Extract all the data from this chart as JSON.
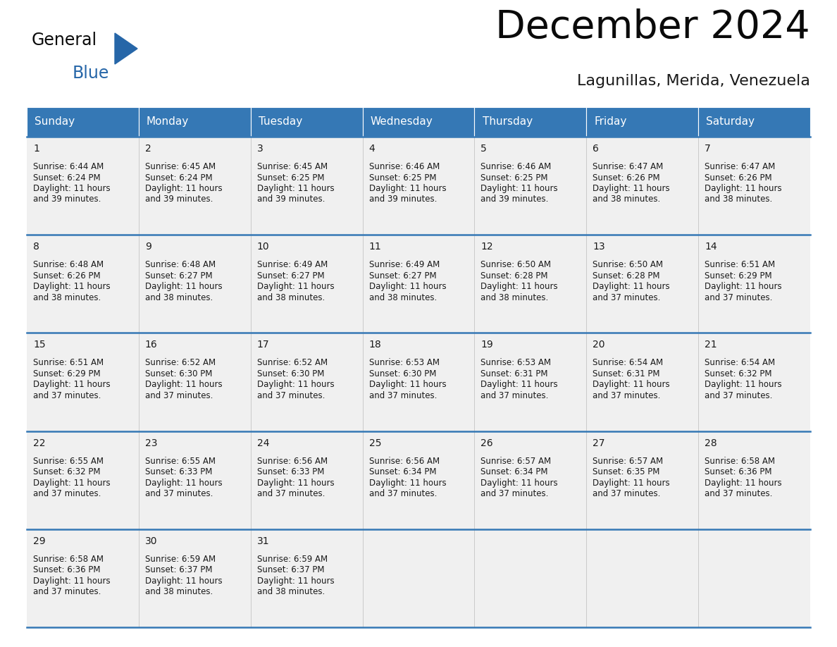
{
  "title": "December 2024",
  "subtitle": "Lagunillas, Merida, Venezuela",
  "header_color": "#3578b5",
  "header_text_color": "#ffffff",
  "cell_bg": "#f0f0f0",
  "days_of_week": [
    "Sunday",
    "Monday",
    "Tuesday",
    "Wednesday",
    "Thursday",
    "Friday",
    "Saturday"
  ],
  "weeks": [
    [
      {
        "day": 1,
        "sunrise": "6:44 AM",
        "sunset": "6:24 PM",
        "daylight_hours": 11,
        "daylight_mins": 39
      },
      {
        "day": 2,
        "sunrise": "6:45 AM",
        "sunset": "6:24 PM",
        "daylight_hours": 11,
        "daylight_mins": 39
      },
      {
        "day": 3,
        "sunrise": "6:45 AM",
        "sunset": "6:25 PM",
        "daylight_hours": 11,
        "daylight_mins": 39
      },
      {
        "day": 4,
        "sunrise": "6:46 AM",
        "sunset": "6:25 PM",
        "daylight_hours": 11,
        "daylight_mins": 39
      },
      {
        "day": 5,
        "sunrise": "6:46 AM",
        "sunset": "6:25 PM",
        "daylight_hours": 11,
        "daylight_mins": 39
      },
      {
        "day": 6,
        "sunrise": "6:47 AM",
        "sunset": "6:26 PM",
        "daylight_hours": 11,
        "daylight_mins": 38
      },
      {
        "day": 7,
        "sunrise": "6:47 AM",
        "sunset": "6:26 PM",
        "daylight_hours": 11,
        "daylight_mins": 38
      }
    ],
    [
      {
        "day": 8,
        "sunrise": "6:48 AM",
        "sunset": "6:26 PM",
        "daylight_hours": 11,
        "daylight_mins": 38
      },
      {
        "day": 9,
        "sunrise": "6:48 AM",
        "sunset": "6:27 PM",
        "daylight_hours": 11,
        "daylight_mins": 38
      },
      {
        "day": 10,
        "sunrise": "6:49 AM",
        "sunset": "6:27 PM",
        "daylight_hours": 11,
        "daylight_mins": 38
      },
      {
        "day": 11,
        "sunrise": "6:49 AM",
        "sunset": "6:27 PM",
        "daylight_hours": 11,
        "daylight_mins": 38
      },
      {
        "day": 12,
        "sunrise": "6:50 AM",
        "sunset": "6:28 PM",
        "daylight_hours": 11,
        "daylight_mins": 38
      },
      {
        "day": 13,
        "sunrise": "6:50 AM",
        "sunset": "6:28 PM",
        "daylight_hours": 11,
        "daylight_mins": 37
      },
      {
        "day": 14,
        "sunrise": "6:51 AM",
        "sunset": "6:29 PM",
        "daylight_hours": 11,
        "daylight_mins": 37
      }
    ],
    [
      {
        "day": 15,
        "sunrise": "6:51 AM",
        "sunset": "6:29 PM",
        "daylight_hours": 11,
        "daylight_mins": 37
      },
      {
        "day": 16,
        "sunrise": "6:52 AM",
        "sunset": "6:30 PM",
        "daylight_hours": 11,
        "daylight_mins": 37
      },
      {
        "day": 17,
        "sunrise": "6:52 AM",
        "sunset": "6:30 PM",
        "daylight_hours": 11,
        "daylight_mins": 37
      },
      {
        "day": 18,
        "sunrise": "6:53 AM",
        "sunset": "6:30 PM",
        "daylight_hours": 11,
        "daylight_mins": 37
      },
      {
        "day": 19,
        "sunrise": "6:53 AM",
        "sunset": "6:31 PM",
        "daylight_hours": 11,
        "daylight_mins": 37
      },
      {
        "day": 20,
        "sunrise": "6:54 AM",
        "sunset": "6:31 PM",
        "daylight_hours": 11,
        "daylight_mins": 37
      },
      {
        "day": 21,
        "sunrise": "6:54 AM",
        "sunset": "6:32 PM",
        "daylight_hours": 11,
        "daylight_mins": 37
      }
    ],
    [
      {
        "day": 22,
        "sunrise": "6:55 AM",
        "sunset": "6:32 PM",
        "daylight_hours": 11,
        "daylight_mins": 37
      },
      {
        "day": 23,
        "sunrise": "6:55 AM",
        "sunset": "6:33 PM",
        "daylight_hours": 11,
        "daylight_mins": 37
      },
      {
        "day": 24,
        "sunrise": "6:56 AM",
        "sunset": "6:33 PM",
        "daylight_hours": 11,
        "daylight_mins": 37
      },
      {
        "day": 25,
        "sunrise": "6:56 AM",
        "sunset": "6:34 PM",
        "daylight_hours": 11,
        "daylight_mins": 37
      },
      {
        "day": 26,
        "sunrise": "6:57 AM",
        "sunset": "6:34 PM",
        "daylight_hours": 11,
        "daylight_mins": 37
      },
      {
        "day": 27,
        "sunrise": "6:57 AM",
        "sunset": "6:35 PM",
        "daylight_hours": 11,
        "daylight_mins": 37
      },
      {
        "day": 28,
        "sunrise": "6:58 AM",
        "sunset": "6:36 PM",
        "daylight_hours": 11,
        "daylight_mins": 37
      }
    ],
    [
      {
        "day": 29,
        "sunrise": "6:58 AM",
        "sunset": "6:36 PM",
        "daylight_hours": 11,
        "daylight_mins": 37
      },
      {
        "day": 30,
        "sunrise": "6:59 AM",
        "sunset": "6:37 PM",
        "daylight_hours": 11,
        "daylight_mins": 38
      },
      {
        "day": 31,
        "sunrise": "6:59 AM",
        "sunset": "6:37 PM",
        "daylight_hours": 11,
        "daylight_mins": 38
      },
      null,
      null,
      null,
      null
    ]
  ],
  "line_color": "#3578b5",
  "text_color": "#1a1a1a",
  "title_fontsize": 40,
  "subtitle_fontsize": 16,
  "day_num_size": 10,
  "cell_text_size": 8.5,
  "header_text_size": 11,
  "logo_general_size": 17,
  "logo_blue_size": 17
}
